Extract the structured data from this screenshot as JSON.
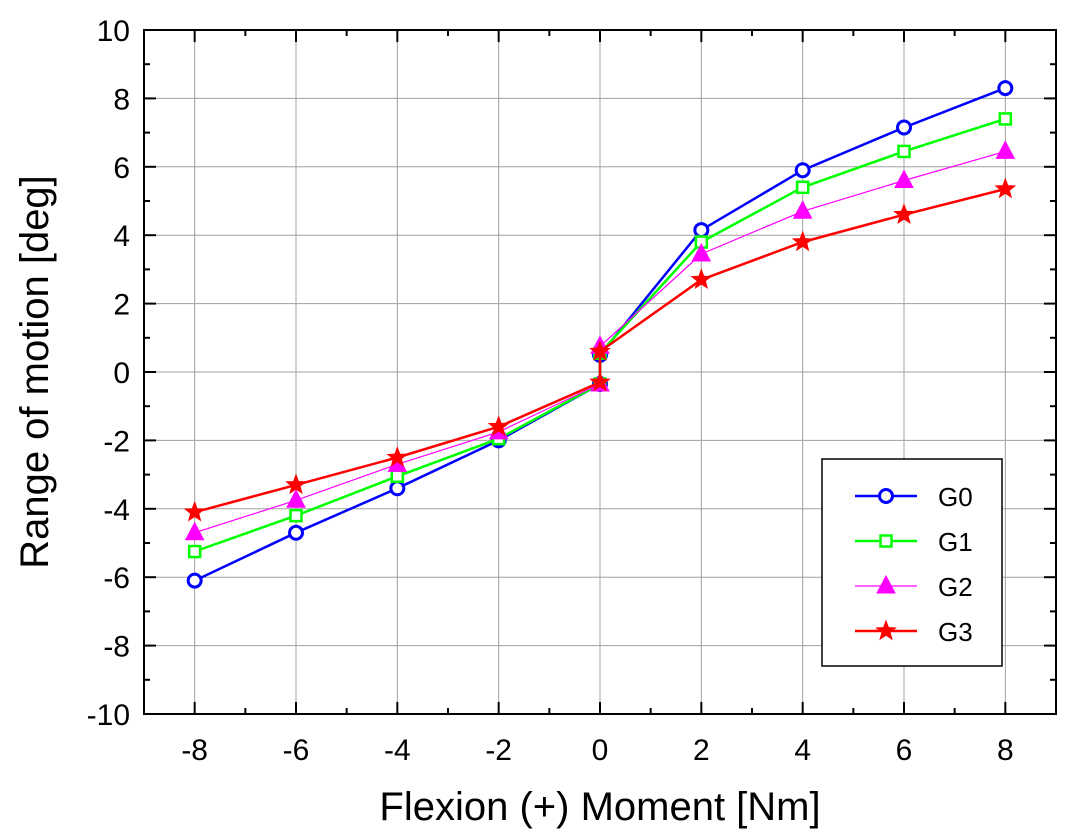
{
  "chart_data": {
    "type": "line",
    "xlabel": "Flexion (+) Moment [Nm]",
    "ylabel": "Range of motion [deg]",
    "xlim": [
      -9,
      9
    ],
    "ylim": [
      -10,
      10
    ],
    "xticks": [
      "-8",
      "-6",
      "-4",
      "-2",
      "0",
      "2",
      "4",
      "6",
      "8"
    ],
    "yticks": [
      "10",
      "8",
      "6",
      "4",
      "2",
      "0",
      "-2",
      "-4",
      "-6",
      "-8",
      "-10"
    ],
    "grid": true,
    "legend_position": "bottom-right",
    "x": [
      -8,
      -6,
      -4,
      -2,
      0,
      0,
      2,
      4,
      6,
      8
    ],
    "series": [
      {
        "name": "G0",
        "color": "#0000ff",
        "marker": "circle",
        "values": [
          -6.1,
          -4.7,
          -3.4,
          -2.0,
          -0.35,
          0.5,
          4.15,
          5.9,
          7.15,
          8.3
        ]
      },
      {
        "name": "G1",
        "color": "#00ff00",
        "marker": "square",
        "values": [
          -5.25,
          -4.2,
          -3.05,
          -1.95,
          -0.35,
          0.55,
          3.8,
          5.4,
          6.45,
          7.4
        ]
      },
      {
        "name": "G2",
        "color": "#ff00ff",
        "marker": "triangle",
        "values": [
          -4.7,
          -3.75,
          -2.7,
          -1.75,
          -0.35,
          0.75,
          3.45,
          4.7,
          5.6,
          6.45
        ]
      },
      {
        "name": "G3",
        "color": "#ff0000",
        "marker": "star",
        "values": [
          -4.1,
          -3.3,
          -2.5,
          -1.6,
          -0.3,
          0.6,
          2.7,
          3.8,
          4.6,
          5.35
        ]
      }
    ]
  }
}
